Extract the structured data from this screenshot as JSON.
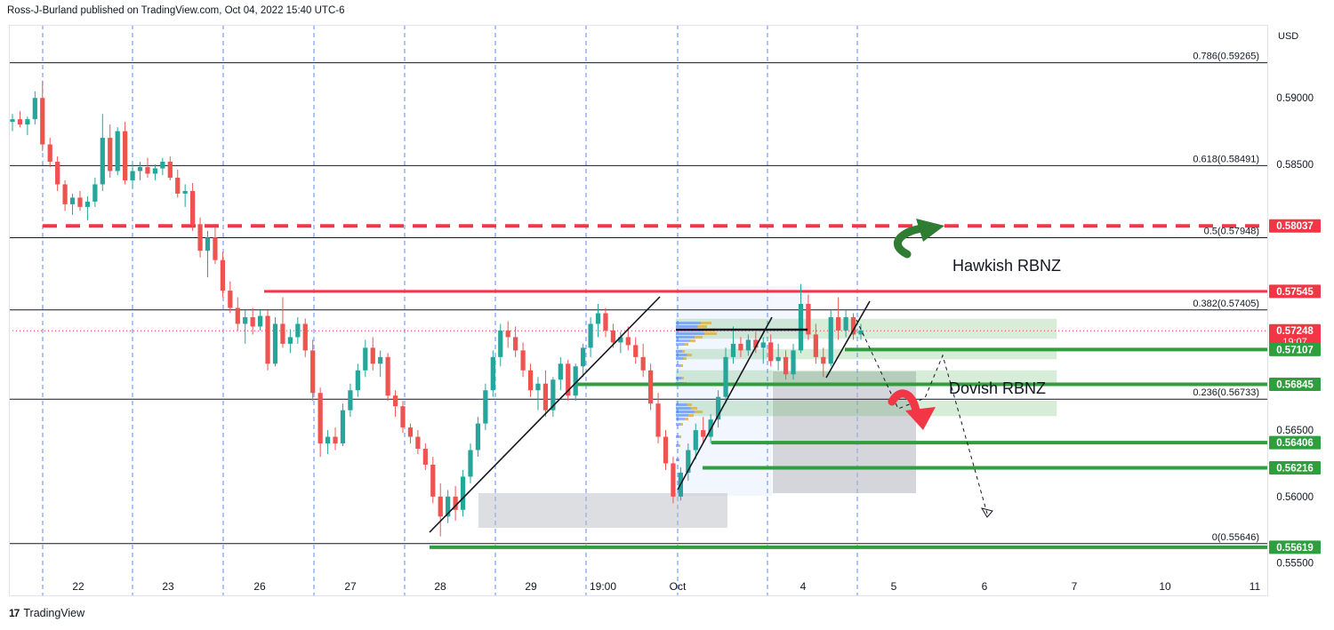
{
  "header": {
    "text": "Ross-J-Burland published on TradingView.com, Oct 04, 2022 15:40 UTC-6"
  },
  "footer": {
    "logo": "17",
    "text": "TradingView"
  },
  "chart_data": {
    "type": "candlestick",
    "currency_label": "USD",
    "y_range": [
      0.5525,
      0.5955
    ],
    "x_ticks": [
      "22",
      "23",
      "26",
      "27",
      "28",
      "29",
      "19:00",
      "Oct",
      "4",
      "5",
      "6",
      "7",
      "10",
      "11"
    ],
    "y_ticks": [
      "0.59000",
      "0.58500",
      "0.56500",
      "0.56000",
      "0.55500"
    ],
    "fib_levels": [
      {
        "label": "0.786(0.59265)",
        "value": 0.59265
      },
      {
        "label": "0.618(0.58491)",
        "value": 0.58491
      },
      {
        "label": "0.5(0.57948)",
        "value": 0.57948
      },
      {
        "label": "0.382(0.57405)",
        "value": 0.57405
      },
      {
        "label": "0.236(0.56733)",
        "value": 0.56733
      },
      {
        "label": "0(0.55646)",
        "value": 0.55646
      }
    ],
    "price_tags": [
      {
        "label": "0.58037",
        "value": 0.58037,
        "color": "#f23645",
        "style": "dashed"
      },
      {
        "label": "0.57545",
        "value": 0.57545,
        "color": "#f23645",
        "style": "solid"
      },
      {
        "label": "0.57248",
        "value": 0.57248,
        "color": "#f23645",
        "style": "current",
        "countdown": "19:07"
      },
      {
        "label": "0.57107",
        "value": 0.57107,
        "color": "#2e9e3e",
        "style": "solid"
      },
      {
        "label": "0.56845",
        "value": 0.56845,
        "color": "#2e9e3e",
        "style": "solid"
      },
      {
        "label": "0.56406",
        "value": 0.56406,
        "color": "#2e9e3e",
        "style": "solid"
      },
      {
        "label": "0.56216",
        "value": 0.56216,
        "color": "#2e9e3e",
        "style": "solid"
      },
      {
        "label": "0.55619",
        "value": 0.55619,
        "color": "#2e9e3e",
        "style": "solid"
      }
    ],
    "annotations": [
      "Hawkish RBNZ",
      "Dovish RBNZ"
    ],
    "colors": {
      "up": "#26a69a",
      "down": "#ef5350",
      "fib": "#131722",
      "session": "#2962ff"
    },
    "candles": [
      [
        0.5882,
        0.5888,
        0.5875,
        0.5884
      ],
      [
        0.5884,
        0.589,
        0.5878,
        0.588
      ],
      [
        0.588,
        0.5886,
        0.5872,
        0.5884
      ],
      [
        0.5884,
        0.5905,
        0.588,
        0.59
      ],
      [
        0.59,
        0.5913,
        0.586,
        0.5865
      ],
      [
        0.5865,
        0.587,
        0.5848,
        0.5852
      ],
      [
        0.5852,
        0.5856,
        0.583,
        0.5835
      ],
      [
        0.5835,
        0.5838,
        0.5815,
        0.582
      ],
      [
        0.582,
        0.5828,
        0.5812,
        0.5825
      ],
      [
        0.5825,
        0.583,
        0.5815,
        0.5818
      ],
      [
        0.5818,
        0.5826,
        0.5808,
        0.5822
      ],
      [
        0.5822,
        0.584,
        0.5818,
        0.5835
      ],
      [
        0.5835,
        0.5888,
        0.583,
        0.587
      ],
      [
        0.587,
        0.588,
        0.584,
        0.5845
      ],
      [
        0.5845,
        0.5878,
        0.5842,
        0.5875
      ],
      [
        0.5875,
        0.5882,
        0.5835,
        0.5838
      ],
      [
        0.5838,
        0.585,
        0.5832,
        0.5845
      ],
      [
        0.5845,
        0.5852,
        0.5838,
        0.5848
      ],
      [
        0.5848,
        0.5855,
        0.584,
        0.5843
      ],
      [
        0.5843,
        0.585,
        0.5838,
        0.5847
      ],
      [
        0.5847,
        0.5855,
        0.5842,
        0.5852
      ],
      [
        0.5852,
        0.5856,
        0.5838,
        0.584
      ],
      [
        0.584,
        0.5846,
        0.5825,
        0.5828
      ],
      [
        0.5828,
        0.5835,
        0.5818,
        0.583
      ],
      [
        0.583,
        0.5836,
        0.58,
        0.5805
      ],
      [
        0.5805,
        0.581,
        0.578,
        0.5785
      ],
      [
        0.5785,
        0.58,
        0.5765,
        0.5795
      ],
      [
        0.5795,
        0.5803,
        0.5775,
        0.5778
      ],
      [
        0.5778,
        0.5784,
        0.575,
        0.5755
      ],
      [
        0.5755,
        0.5762,
        0.5738,
        0.5742
      ],
      [
        0.5742,
        0.575,
        0.5725,
        0.573
      ],
      [
        0.573,
        0.574,
        0.5715,
        0.5735
      ],
      [
        0.5735,
        0.5742,
        0.5722,
        0.5728
      ],
      [
        0.5728,
        0.574,
        0.5725,
        0.5736
      ],
      [
        0.5736,
        0.574,
        0.5695,
        0.57
      ],
      [
        0.57,
        0.5735,
        0.5698,
        0.573
      ],
      [
        0.573,
        0.575,
        0.5712,
        0.5715
      ],
      [
        0.5715,
        0.5726,
        0.5708,
        0.572
      ],
      [
        0.572,
        0.5735,
        0.5715,
        0.573
      ],
      [
        0.573,
        0.5734,
        0.5705,
        0.571
      ],
      [
        0.571,
        0.5718,
        0.5672,
        0.5678
      ],
      [
        0.5678,
        0.5682,
        0.563,
        0.564
      ],
      [
        0.564,
        0.565,
        0.5632,
        0.5645
      ],
      [
        0.5645,
        0.5652,
        0.5635,
        0.564
      ],
      [
        0.564,
        0.567,
        0.5638,
        0.5665
      ],
      [
        0.5665,
        0.5685,
        0.566,
        0.568
      ],
      [
        0.568,
        0.57,
        0.5675,
        0.5695
      ],
      [
        0.5695,
        0.5718,
        0.569,
        0.5712
      ],
      [
        0.5712,
        0.572,
        0.5695,
        0.57
      ],
      [
        0.57,
        0.571,
        0.569,
        0.5705
      ],
      [
        0.5705,
        0.5708,
        0.5672,
        0.5676
      ],
      [
        0.5676,
        0.568,
        0.566,
        0.5668
      ],
      [
        0.5668,
        0.5672,
        0.5648,
        0.5652
      ],
      [
        0.5652,
        0.5655,
        0.564,
        0.5645
      ],
      [
        0.5645,
        0.565,
        0.5632,
        0.5636
      ],
      [
        0.5636,
        0.564,
        0.562,
        0.5624
      ],
      [
        0.5624,
        0.563,
        0.5595,
        0.56
      ],
      [
        0.56,
        0.561,
        0.557,
        0.5585
      ],
      [
        0.5585,
        0.5605,
        0.558,
        0.56
      ],
      [
        0.56,
        0.5608,
        0.5582,
        0.559
      ],
      [
        0.559,
        0.562,
        0.5585,
        0.5615
      ],
      [
        0.5615,
        0.564,
        0.561,
        0.5635
      ],
      [
        0.5635,
        0.566,
        0.563,
        0.5655
      ],
      [
        0.5655,
        0.5685,
        0.565,
        0.568
      ],
      [
        0.568,
        0.571,
        0.5675,
        0.5705
      ],
      [
        0.5705,
        0.573,
        0.5698,
        0.5725
      ],
      [
        0.5725,
        0.5732,
        0.5712,
        0.572
      ],
      [
        0.572,
        0.5728,
        0.5705,
        0.571
      ],
      [
        0.571,
        0.5716,
        0.569,
        0.5695
      ],
      [
        0.5695,
        0.57,
        0.5675,
        0.568
      ],
      [
        0.568,
        0.569,
        0.5665,
        0.5685
      ],
      [
        0.5685,
        0.5695,
        0.566,
        0.5665
      ],
      [
        0.5665,
        0.569,
        0.566,
        0.5688
      ],
      [
        0.5688,
        0.5705,
        0.568,
        0.57
      ],
      [
        0.57,
        0.5703,
        0.5672,
        0.5676
      ],
      [
        0.5676,
        0.57,
        0.5672,
        0.5698
      ],
      [
        0.5698,
        0.5715,
        0.569,
        0.5712
      ],
      [
        0.5712,
        0.5735,
        0.5705,
        0.573
      ],
      [
        0.573,
        0.5745,
        0.572,
        0.5738
      ],
      [
        0.5738,
        0.5742,
        0.572,
        0.5725
      ],
      [
        0.5725,
        0.573,
        0.5712,
        0.5716
      ],
      [
        0.5716,
        0.5724,
        0.5708,
        0.572
      ],
      [
        0.572,
        0.5728,
        0.571,
        0.5714
      ],
      [
        0.5714,
        0.572,
        0.57,
        0.5705
      ],
      [
        0.5705,
        0.5715,
        0.569,
        0.5695
      ],
      [
        0.5695,
        0.57,
        0.5665,
        0.567
      ],
      [
        0.567,
        0.5678,
        0.564,
        0.5645
      ],
      [
        0.5645,
        0.565,
        0.562,
        0.5625
      ],
      [
        0.5625,
        0.563,
        0.5595,
        0.56
      ],
      [
        0.56,
        0.5622,
        0.5597,
        0.5618
      ],
      [
        0.5618,
        0.564,
        0.5612,
        0.5635
      ],
      [
        0.5635,
        0.5655,
        0.5628,
        0.565
      ],
      [
        0.565,
        0.566,
        0.564,
        0.5645
      ],
      [
        0.5645,
        0.5662,
        0.564,
        0.5658
      ],
      [
        0.5658,
        0.568,
        0.5652,
        0.5675
      ],
      [
        0.5675,
        0.5712,
        0.567,
        0.5705
      ],
      [
        0.5705,
        0.5728,
        0.57,
        0.5715
      ],
      [
        0.5715,
        0.572,
        0.5705,
        0.571
      ],
      [
        0.571,
        0.5722,
        0.5706,
        0.5718
      ],
      [
        0.5718,
        0.5724,
        0.5708,
        0.5712
      ],
      [
        0.5712,
        0.572,
        0.57,
        0.5716
      ],
      [
        0.5716,
        0.5722,
        0.5698,
        0.5702
      ],
      [
        0.5702,
        0.5715,
        0.5695,
        0.5705
      ],
      [
        0.5705,
        0.571,
        0.5688,
        0.5692
      ],
      [
        0.5692,
        0.5715,
        0.5688,
        0.571
      ],
      [
        0.571,
        0.576,
        0.5708,
        0.5745
      ],
      [
        0.5745,
        0.5752,
        0.5718,
        0.5722
      ],
      [
        0.5722,
        0.573,
        0.57,
        0.5705
      ],
      [
        0.5705,
        0.5712,
        0.569,
        0.57
      ],
      [
        0.57,
        0.574,
        0.5698,
        0.5735
      ],
      [
        0.5735,
        0.575,
        0.5718,
        0.5725
      ],
      [
        0.5725,
        0.574,
        0.572,
        0.5735
      ],
      [
        0.5735,
        0.5738,
        0.5718,
        0.5722
      ],
      [
        0.5722,
        0.573,
        0.5718,
        0.5725
      ]
    ]
  }
}
